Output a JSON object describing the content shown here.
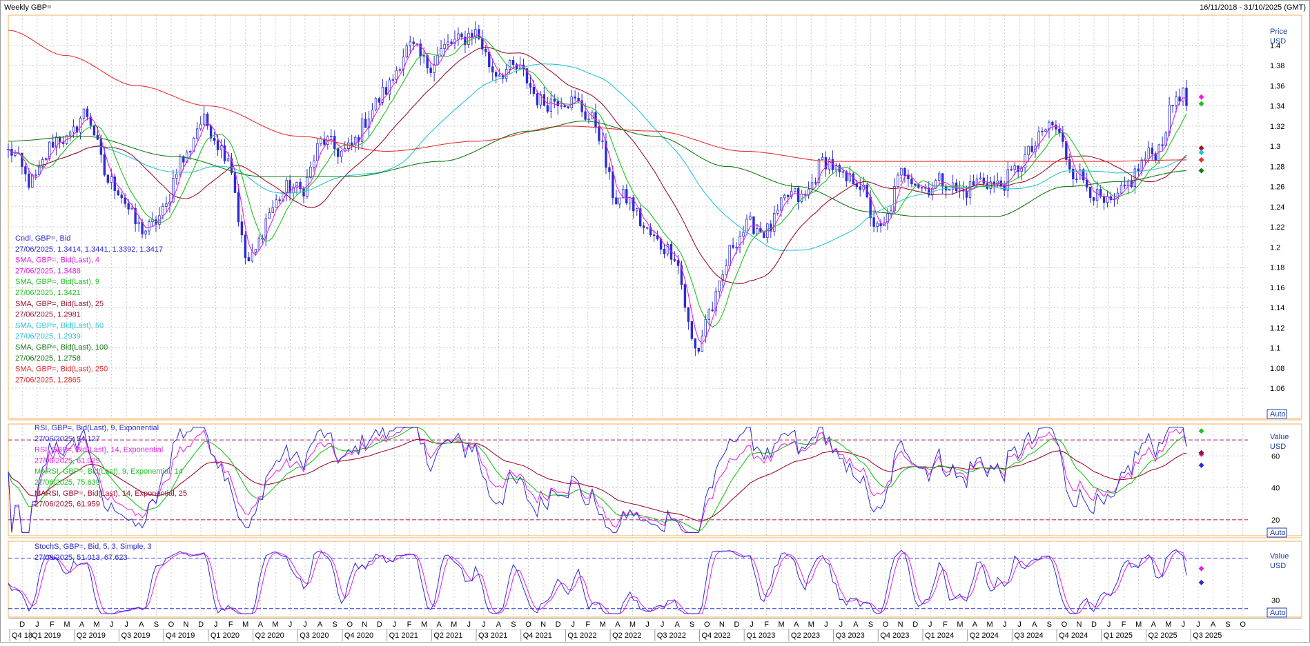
{
  "header": {
    "title": "Weekly GBP=",
    "range": "16/11/2018 - 31/10/2025 (GMT)"
  },
  "price_panel": {
    "axis_title": "Price",
    "axis_unit": "USD",
    "auto_label": "Auto",
    "legend": [
      {
        "text": "Cndl, GBP=, Bid",
        "color": "#2b2bd6"
      },
      {
        "text": "27/06/2025, 1.3414, 1.3441, 1.3392, 1.3417",
        "color": "#2b2bd6"
      },
      {
        "text": "SMA, GBP=, Bid(Last), 4",
        "color": "#e61ee6"
      },
      {
        "text": "27/06/2025, 1.3488",
        "color": "#e61ee6"
      },
      {
        "text": "SMA, GBP=, Bid(Last), 9",
        "color": "#1fc21f"
      },
      {
        "text": "27/06/2025, 1.3421",
        "color": "#1fc21f"
      },
      {
        "text": "SMA, GBP=, Bid(Last), 25",
        "color": "#9b1030"
      },
      {
        "text": "27/06/2025, 1.2981",
        "color": "#9b1030"
      },
      {
        "text": "SMA, GBP=, Bid(Last), 50",
        "color": "#26c6d6"
      },
      {
        "text": "27/06/2025, 1.2939",
        "color": "#26c6d6"
      },
      {
        "text": "SMA, GBP=, Bid(Last), 100",
        "color": "#127a12"
      },
      {
        "text": "27/06/2025, 1.2758",
        "color": "#127a12"
      },
      {
        "text": "SMA, GBP=, Bid(Last), 250",
        "color": "#e63030"
      },
      {
        "text": "27/06/2025, 1.2865",
        "color": "#e63030"
      }
    ]
  },
  "rsi_panel": {
    "axis_title": "Value",
    "axis_unit": "USD",
    "auto_label": "Auto",
    "legend": [
      {
        "text": "RSI, GBP=, Bid(Last), 9, Exponential",
        "color": "#2b2bd6"
      },
      {
        "text": "27/06/2025, 54.127",
        "color": "#2b2bd6"
      },
      {
        "text": "RSI, GBP=, Bid(Last), 14, Exponential",
        "color": "#e61ee6"
      },
      {
        "text": "27/06/2025, 61.029",
        "color": "#e61ee6"
      },
      {
        "text": "MARSI, GBP=, Bid(Last), 9, Exponential, 14",
        "color": "#1fc21f"
      },
      {
        "text": "27/06/2025, 75.639",
        "color": "#1fc21f"
      },
      {
        "text": "MARSI, GBP=, Bid(Last), 14, Exponential, 25",
        "color": "#9b1030"
      },
      {
        "text": "27/06/2025, 61.959",
        "color": "#9b1030"
      }
    ]
  },
  "stoch_panel": {
    "axis_title": "Value",
    "axis_unit": "USD",
    "auto_label": "Auto",
    "legend": [
      {
        "text": "StochS, GBP=, Bid, 5, 3, Simple, 3",
        "color": "#2b2bd6"
      },
      {
        "text": "27/06/2025, 51.013, 67.623",
        "color": "#2b2bd6"
      }
    ]
  },
  "colors": {
    "candle": "#2b2bd6",
    "sma4": "#e61ee6",
    "sma9": "#1fc21f",
    "sma25": "#9b1030",
    "sma50": "#26c6d6",
    "sma100": "#127a12",
    "sma250": "#e63030",
    "panel_border": "#f0b060",
    "grid": "#c8c8c8",
    "level_line": "#b01060",
    "stoch_level": "#2b2bd6"
  },
  "chart_data": [
    {
      "type": "line",
      "panel": "price",
      "ylim": [
        1.03,
        1.43
      ],
      "y_ticks": [
        1.06,
        1.08,
        1.1,
        1.12,
        1.14,
        1.16,
        1.18,
        1.2,
        1.22,
        1.24,
        1.26,
        1.28,
        1.3,
        1.32,
        1.34,
        1.36,
        1.38,
        1.4
      ],
      "y_tick_labels": [
        "1.06",
        "1.08",
        "1.1",
        "1.12",
        "1.14",
        "1.16",
        "1.18",
        "1.2",
        "1.22",
        "1.24",
        "1.26",
        "1.28",
        "1.3",
        "1.32",
        "1.34",
        "1.36",
        "1.38",
        "1.4"
      ],
      "x_range": [
        "2018-11-16",
        "2025-10-31"
      ],
      "x_unit": "year",
      "grid": true,
      "price_key_points": {
        "x": [
          2018.88,
          2019.0,
          2019.2,
          2019.3,
          2019.45,
          2019.6,
          2019.75,
          2019.85,
          2019.95,
          2020.1,
          2020.22,
          2020.35,
          2020.5,
          2020.65,
          2020.8,
          2021.0,
          2021.15,
          2021.25,
          2021.4,
          2021.47,
          2021.6,
          2021.75,
          2021.92,
          2022.05,
          2022.15,
          2022.3,
          2022.45,
          2022.6,
          2022.74,
          2022.8,
          2022.95,
          2023.1,
          2023.3,
          2023.45,
          2023.6,
          2023.75,
          2023.9,
          2024.1,
          2024.3,
          2024.5,
          2024.7,
          2024.85,
          2025.0,
          2025.15,
          2025.3,
          2025.45,
          2025.49
        ],
        "close": [
          1.29,
          1.27,
          1.31,
          1.33,
          1.27,
          1.22,
          1.23,
          1.29,
          1.32,
          1.3,
          1.18,
          1.24,
          1.26,
          1.3,
          1.3,
          1.36,
          1.4,
          1.38,
          1.41,
          1.41,
          1.38,
          1.37,
          1.34,
          1.35,
          1.32,
          1.25,
          1.22,
          1.19,
          1.1,
          1.13,
          1.21,
          1.22,
          1.25,
          1.28,
          1.27,
          1.22,
          1.27,
          1.26,
          1.26,
          1.27,
          1.32,
          1.28,
          1.24,
          1.26,
          1.3,
          1.35,
          1.3417
        ]
      },
      "series": [
        {
          "name": "SMA, GBP=, Bid(Last), 250",
          "x": [
            2018.88,
            2019.2,
            2019.6,
            2020.0,
            2020.5,
            2021.0,
            2021.5,
            2022.0,
            2022.5,
            2023.0,
            2023.5,
            2024.0,
            2024.5,
            2025.0,
            2025.49
          ],
          "values": [
            1.415,
            1.39,
            1.36,
            1.34,
            1.31,
            1.295,
            1.305,
            1.32,
            1.315,
            1.295,
            1.285,
            1.285,
            1.285,
            1.285,
            1.2865
          ]
        },
        {
          "name": "SMA, GBP=, Bid(Last), 100",
          "x": [
            2018.88,
            2019.3,
            2019.8,
            2020.3,
            2020.8,
            2021.3,
            2021.8,
            2022.1,
            2022.5,
            2022.9,
            2023.3,
            2023.7,
            2024.0,
            2024.4,
            2024.8,
            2025.1,
            2025.49
          ],
          "values": [
            1.305,
            1.31,
            1.29,
            1.27,
            1.27,
            1.285,
            1.315,
            1.325,
            1.31,
            1.28,
            1.26,
            1.235,
            1.23,
            1.23,
            1.26,
            1.265,
            1.2758
          ]
        }
      ]
    },
    {
      "type": "line",
      "panel": "rsi",
      "ylim": [
        10,
        80
      ],
      "y_ticks": [
        20,
        40,
        60
      ],
      "y_tick_labels": [
        "20",
        "40",
        "60"
      ],
      "levels": [
        20,
        70
      ],
      "series": [
        {
          "name": "MARSI, GBP=, Bid(Last), 14, Exponential, 25",
          "x": [
            2018.88,
            2019.3,
            2019.8,
            2020.3,
            2020.8,
            2021.2,
            2021.6,
            2022.0,
            2022.4,
            2022.8,
            2023.2,
            2023.6,
            2023.9,
            2024.3,
            2024.7,
            2025.0,
            2025.49
          ],
          "values": [
            50,
            52,
            55,
            52,
            55,
            60,
            58,
            52,
            40,
            30,
            55,
            62,
            50,
            52,
            56,
            45,
            61.959
          ]
        }
      ]
    },
    {
      "type": "line",
      "panel": "stoch",
      "ylim": [
        10,
        100
      ],
      "y_ticks": [
        30
      ],
      "y_tick_labels": [
        "30"
      ],
      "levels": [
        20,
        80
      ]
    }
  ],
  "x_axis": {
    "months": [
      "D",
      "J",
      "F",
      "M",
      "A",
      "M",
      "J",
      "J",
      "A",
      "S",
      "O",
      "N",
      "D",
      "J",
      "F",
      "M",
      "A",
      "M",
      "J",
      "J",
      "A",
      "S",
      "O",
      "N",
      "D",
      "J",
      "F",
      "M",
      "A",
      "M",
      "J",
      "J",
      "A",
      "S",
      "O",
      "N",
      "D",
      "J",
      "F",
      "M",
      "A",
      "M",
      "J",
      "J",
      "A",
      "S",
      "O",
      "N",
      "D",
      "J",
      "F",
      "M",
      "A",
      "M",
      "J",
      "J",
      "A",
      "S",
      "O",
      "N",
      "D",
      "J",
      "F",
      "M",
      "A",
      "M",
      "J",
      "J",
      "A",
      "S",
      "O",
      "N",
      "D",
      "J",
      "F",
      "M",
      "A",
      "M",
      "J",
      "J",
      "A",
      "S",
      "O"
    ],
    "quarters": [
      "Q4 18",
      "Q1 2019",
      "Q2 2019",
      "Q3 2019",
      "Q4 2019",
      "Q1 2020",
      "Q2 2020",
      "Q3 2020",
      "Q4 2020",
      "Q1 2021",
      "Q2 2021",
      "Q3 2021",
      "Q4 2021",
      "Q1 2022",
      "Q2 2022",
      "Q3 2022",
      "Q4 2022",
      "Q1 2023",
      "Q2 2023",
      "Q3 2023",
      "Q4 2023",
      "Q1 2024",
      "Q2 2024",
      "Q3 2024",
      "Q4 2024",
      "Q1 2025",
      "Q2 2025",
      "Q3 2025"
    ]
  }
}
